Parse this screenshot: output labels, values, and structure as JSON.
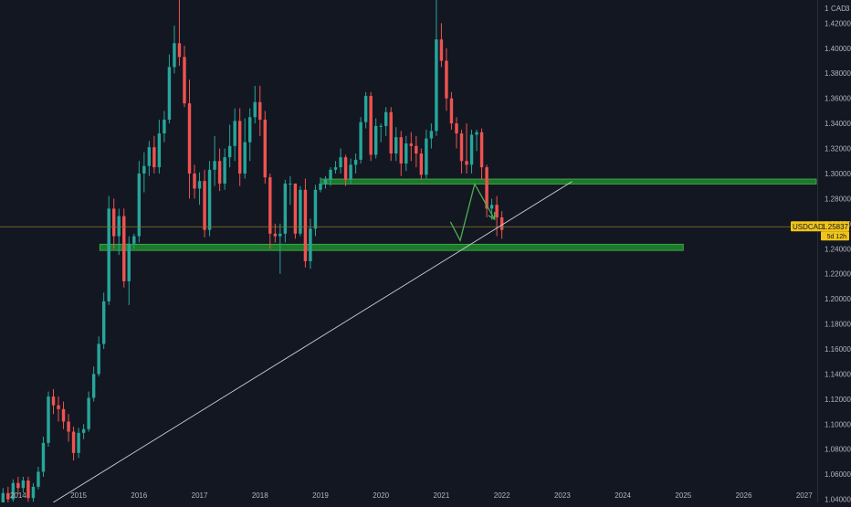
{
  "chart_data": {
    "type": "candlestick",
    "symbol": "USDCAD",
    "currency": "CAD",
    "currency_count": "3",
    "last_price": "1.25837",
    "countdown": "5d 12h",
    "yaxis": {
      "min": 1.0375,
      "max": 1.4385,
      "ticks": [
        1.04,
        1.06,
        1.08,
        1.1,
        1.12,
        1.14,
        1.16,
        1.18,
        1.2,
        1.22,
        1.24,
        1.26,
        1.28,
        1.3,
        1.32,
        1.34,
        1.36,
        1.38,
        1.4,
        1.42
      ],
      "tick_labels": [
        "1.04000",
        "1.06000",
        "1.08000",
        "1.10000",
        "1.12000",
        "1.14000",
        "1.16000",
        "1.18000",
        "1.20000",
        "1.22000",
        "1.24000",
        "1.26000",
        "1.28000",
        "1.30000",
        "1.32000",
        "1.34000",
        "1.36000",
        "1.38000",
        "1.40000",
        "1.42000"
      ],
      "top_label": "1"
    },
    "xaxis": {
      "min": 2013.7,
      "max": 2027.23,
      "ticks": [
        2014,
        2015,
        2016,
        2017,
        2018,
        2019,
        2020,
        2021,
        2022,
        2023,
        2024,
        2025,
        2026,
        2027
      ],
      "tick_labels": [
        "2014",
        "2015",
        "2016",
        "2017",
        "2018",
        "2019",
        "2020",
        "2021",
        "2022",
        "2023",
        "2024",
        "2025",
        "2026",
        "2027"
      ]
    },
    "grid": false,
    "candle_start": 2013.75,
    "candle_step": 0.08333,
    "candles": [
      [
        1.031,
        1.045,
        1.028,
        1.049
      ],
      [
        1.045,
        1.04,
        1.034,
        1.05
      ],
      [
        1.04,
        1.053,
        1.038,
        1.056
      ],
      [
        1.053,
        1.049,
        1.044,
        1.058
      ],
      [
        1.049,
        1.055,
        1.045,
        1.058
      ],
      [
        1.055,
        1.041,
        1.038,
        1.058
      ],
      [
        1.041,
        1.05,
        1.038,
        1.053
      ],
      [
        1.05,
        1.062,
        1.048,
        1.066
      ],
      [
        1.062,
        1.085,
        1.058,
        1.09
      ],
      [
        1.085,
        1.122,
        1.082,
        1.126
      ],
      [
        1.122,
        1.115,
        1.108,
        1.128
      ],
      [
        1.115,
        1.112,
        1.102,
        1.122
      ],
      [
        1.112,
        1.102,
        1.096,
        1.118
      ],
      [
        1.102,
        1.094,
        1.086,
        1.108
      ],
      [
        1.094,
        1.077,
        1.071,
        1.098
      ],
      [
        1.077,
        1.093,
        1.073,
        1.097
      ],
      [
        1.093,
        1.096,
        1.088,
        1.1
      ],
      [
        1.096,
        1.121,
        1.094,
        1.126
      ],
      [
        1.121,
        1.14,
        1.118,
        1.146
      ],
      [
        1.14,
        1.164,
        1.138,
        1.17
      ],
      [
        1.164,
        1.198,
        1.16,
        1.205
      ],
      [
        1.198,
        1.272,
        1.195,
        1.282
      ],
      [
        1.272,
        1.25,
        1.24,
        1.28
      ],
      [
        1.25,
        1.266,
        1.235,
        1.272
      ],
      [
        1.266,
        1.214,
        1.209,
        1.272
      ],
      [
        1.214,
        1.244,
        1.195,
        1.25
      ],
      [
        1.244,
        1.25,
        1.24,
        1.252
      ],
      [
        1.25,
        1.3,
        1.245,
        1.31
      ],
      [
        1.3,
        1.306,
        1.285,
        1.317
      ],
      [
        1.306,
        1.321,
        1.298,
        1.326
      ],
      [
        1.321,
        1.305,
        1.3,
        1.33
      ],
      [
        1.305,
        1.332,
        1.3,
        1.343
      ],
      [
        1.332,
        1.343,
        1.325,
        1.35
      ],
      [
        1.343,
        1.385,
        1.34,
        1.395
      ],
      [
        1.385,
        1.404,
        1.38,
        1.418
      ],
      [
        1.404,
        1.393,
        1.386,
        1.463
      ],
      [
        1.393,
        1.356,
        1.353,
        1.402
      ],
      [
        1.356,
        1.3,
        1.28,
        1.375
      ],
      [
        1.3,
        1.288,
        1.28,
        1.307
      ],
      [
        1.288,
        1.294,
        1.275,
        1.301
      ],
      [
        1.294,
        1.255,
        1.249,
        1.303
      ],
      [
        1.255,
        1.303,
        1.25,
        1.31
      ],
      [
        1.303,
        1.31,
        1.29,
        1.33
      ],
      [
        1.31,
        1.292,
        1.286,
        1.32
      ],
      [
        1.292,
        1.313,
        1.287,
        1.32
      ],
      [
        1.313,
        1.322,
        1.305,
        1.339
      ],
      [
        1.322,
        1.342,
        1.31,
        1.352
      ],
      [
        1.342,
        1.3,
        1.29,
        1.352
      ],
      [
        1.3,
        1.325,
        1.296,
        1.344
      ],
      [
        1.325,
        1.345,
        1.31,
        1.352
      ],
      [
        1.345,
        1.357,
        1.34,
        1.37
      ],
      [
        1.357,
        1.343,
        1.33,
        1.37
      ],
      [
        1.343,
        1.297,
        1.292,
        1.35
      ],
      [
        1.297,
        1.252,
        1.24,
        1.3
      ],
      [
        1.252,
        1.25,
        1.245,
        1.26
      ],
      [
        1.25,
        1.252,
        1.22,
        1.26
      ],
      [
        1.252,
        1.292,
        1.245,
        1.295
      ],
      [
        1.292,
        1.292,
        1.275,
        1.298
      ],
      [
        1.292,
        1.252,
        1.248,
        1.292
      ],
      [
        1.252,
        1.287,
        1.25,
        1.29
      ],
      [
        1.287,
        1.23,
        1.225,
        1.296
      ],
      [
        1.23,
        1.256,
        1.224,
        1.264
      ],
      [
        1.256,
        1.287,
        1.25,
        1.291
      ],
      [
        1.287,
        1.292,
        1.285,
        1.297
      ],
      [
        1.292,
        1.295,
        1.288,
        1.298
      ],
      [
        1.295,
        1.303,
        1.29,
        1.305
      ],
      [
        1.303,
        1.305,
        1.3,
        1.31
      ],
      [
        1.305,
        1.313,
        1.3,
        1.32
      ],
      [
        1.313,
        1.295,
        1.29,
        1.315
      ],
      [
        1.295,
        1.307,
        1.292,
        1.312
      ],
      [
        1.307,
        1.311,
        1.3,
        1.316
      ],
      [
        1.311,
        1.341,
        1.308,
        1.345
      ],
      [
        1.341,
        1.362,
        1.336,
        1.365
      ],
      [
        1.362,
        1.315,
        1.31,
        1.365
      ],
      [
        1.315,
        1.338,
        1.312,
        1.344
      ],
      [
        1.338,
        1.338,
        1.325,
        1.34
      ],
      [
        1.338,
        1.349,
        1.33,
        1.353
      ],
      [
        1.349,
        1.316,
        1.31,
        1.353
      ],
      [
        1.316,
        1.329,
        1.31,
        1.337
      ],
      [
        1.329,
        1.308,
        1.298,
        1.334
      ],
      [
        1.308,
        1.324,
        1.302,
        1.33
      ],
      [
        1.324,
        1.322,
        1.31,
        1.333
      ],
      [
        1.322,
        1.316,
        1.305,
        1.33
      ],
      [
        1.316,
        1.299,
        1.295,
        1.32
      ],
      [
        1.299,
        1.328,
        1.296,
        1.335
      ],
      [
        1.328,
        1.334,
        1.32,
        1.34
      ],
      [
        1.334,
        1.407,
        1.33,
        1.456
      ],
      [
        1.407,
        1.39,
        1.385,
        1.42
      ],
      [
        1.39,
        1.36,
        1.35,
        1.4
      ],
      [
        1.36,
        1.34,
        1.335,
        1.365
      ],
      [
        1.34,
        1.332,
        1.32,
        1.345
      ],
      [
        1.332,
        1.31,
        1.3,
        1.335
      ],
      [
        1.31,
        1.307,
        1.3,
        1.34
      ],
      [
        1.307,
        1.331,
        1.3,
        1.335
      ],
      [
        1.331,
        1.333,
        1.318,
        1.335
      ],
      [
        1.333,
        1.305,
        1.295,
        1.336
      ],
      [
        1.305,
        1.272,
        1.265,
        1.307
      ],
      [
        1.272,
        1.275,
        1.263,
        1.28
      ],
      [
        1.275,
        1.265,
        1.25,
        1.282
      ],
      [
        1.265,
        1.255,
        1.248,
        1.27
      ]
    ],
    "support_zones": [
      {
        "from": 2019.0,
        "to": 2027.2,
        "y_low": 1.2916,
        "y_high": 1.2956
      },
      {
        "from": 2015.35,
        "to": 2025.0,
        "y_low": 1.2386,
        "y_high": 1.2436
      }
    ],
    "trendline": [
      [
        2014.58,
        1.0375
      ],
      [
        2023.16,
        1.2936
      ]
    ],
    "projection_path": [
      [
        2021.15,
        1.2615
      ],
      [
        2021.31,
        1.2465
      ],
      [
        2021.55,
        1.2916
      ],
      [
        2021.88,
        1.2635
      ]
    ],
    "price_line": 1.2575,
    "colors": {
      "background": "#131722",
      "up": "#26a69a",
      "down": "#ef5350",
      "zone_fill": "#1b7a2a",
      "zone_edge": "#4caf50",
      "trendline": "#d1d4dc",
      "projection": "#4caf50",
      "price_line": "#8c7a2a",
      "badge": "#f0c419",
      "axis_text": "#b2b5be"
    }
  }
}
